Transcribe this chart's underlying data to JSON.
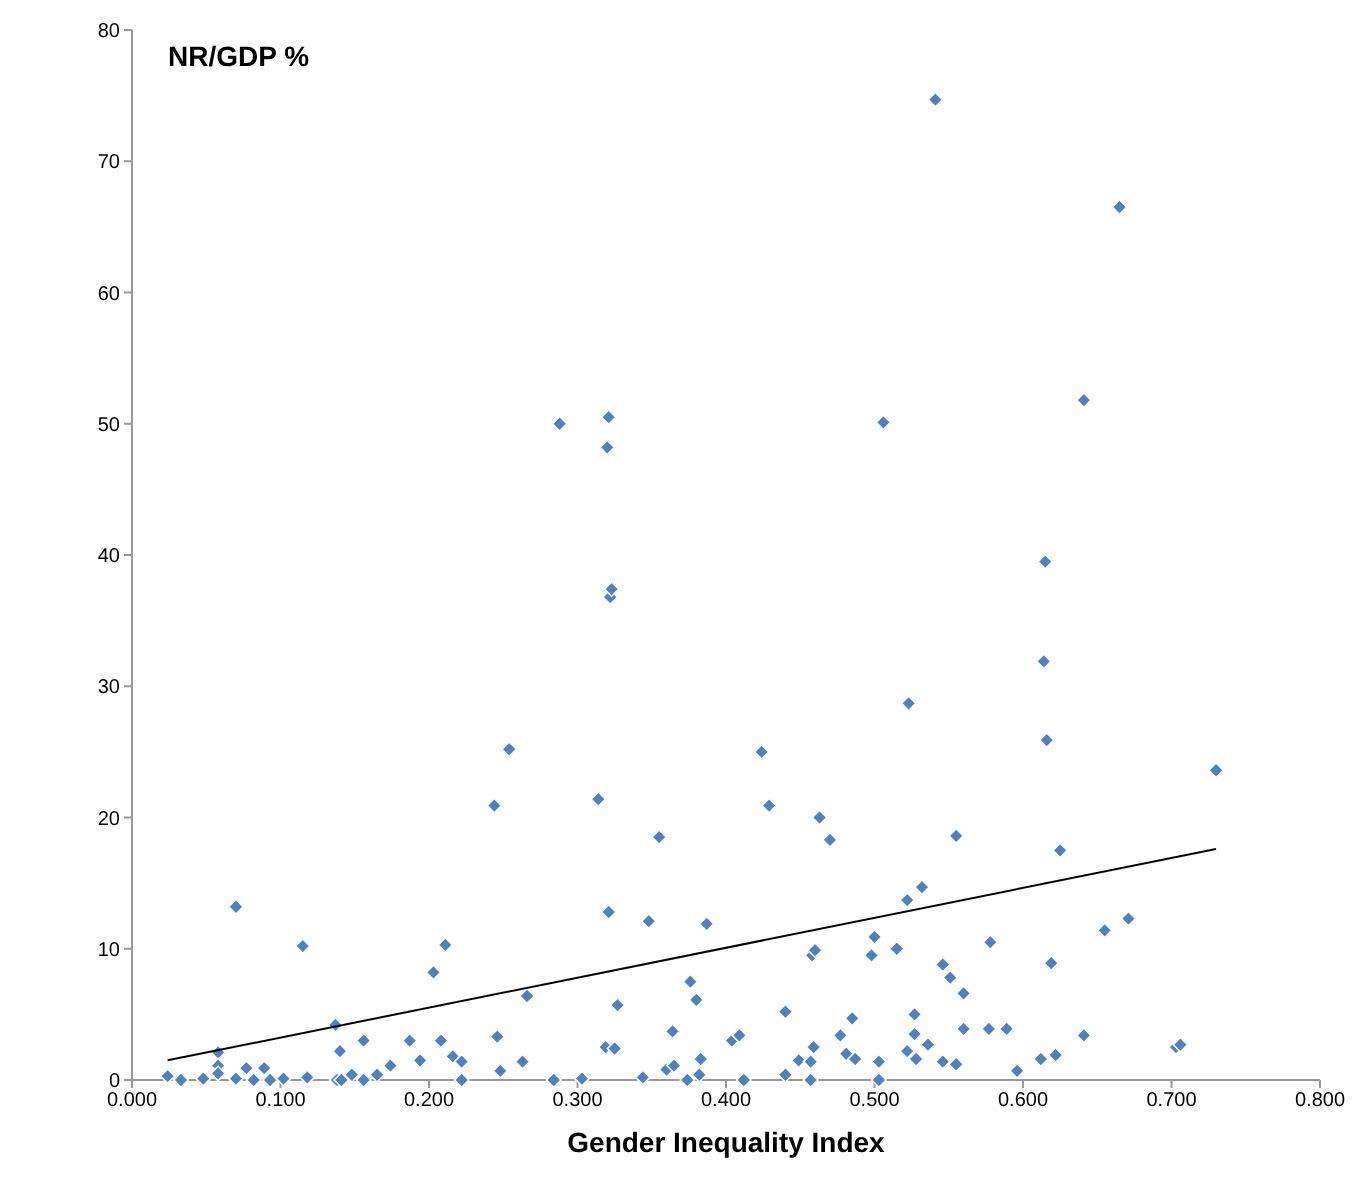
{
  "chart_data": {
    "type": "scatter",
    "ylabel": "NR/GDP %",
    "xlabel": "Gender Inequality Index",
    "xlim": [
      0,
      0.8
    ],
    "xticks": [
      {
        "value": 0,
        "label": "0.000"
      },
      {
        "value": 0.1,
        "label": "0.100"
      },
      {
        "value": 0.2,
        "label": "0.200"
      },
      {
        "value": 0.3,
        "label": "0.300"
      },
      {
        "value": 0.4,
        "label": "0.400"
      },
      {
        "value": 0.5,
        "label": "0.500"
      },
      {
        "value": 0.6,
        "label": "0.600"
      },
      {
        "value": 0.7,
        "label": "0.700"
      },
      {
        "value": 0.8,
        "label": "0.800"
      }
    ],
    "ylim": [
      0,
      80
    ],
    "yticks": [
      0,
      10,
      20,
      30,
      40,
      50,
      60,
      70,
      80
    ],
    "grid": false,
    "legend": false,
    "marker": "diamond",
    "series": [
      {
        "type": "scatter",
        "color": "#4f81bd",
        "x": [
          0.024,
          0.033,
          0.048,
          0.058,
          0.058,
          0.058,
          0.07,
          0.07,
          0.077,
          0.082,
          0.089,
          0.093,
          0.102,
          0.115,
          0.118,
          0.137,
          0.138,
          0.14,
          0.141,
          0.148,
          0.156,
          0.156,
          0.165,
          0.174,
          0.187,
          0.194,
          0.203,
          0.208,
          0.211,
          0.216,
          0.222,
          0.222,
          0.244,
          0.246,
          0.248,
          0.254,
          0.263,
          0.266,
          0.284,
          0.288,
          0.303,
          0.314,
          0.319,
          0.32,
          0.321,
          0.321,
          0.322,
          0.323,
          0.325,
          0.327,
          0.344,
          0.348,
          0.355,
          0.36,
          0.364,
          0.365,
          0.374,
          0.376,
          0.38,
          0.382,
          0.383,
          0.387,
          0.404,
          0.409,
          0.412,
          0.424,
          0.429,
          0.44,
          0.44,
          0.449,
          0.457,
          0.457,
          0.458,
          0.459,
          0.46,
          0.463,
          0.47,
          0.477,
          0.481,
          0.485,
          0.487,
          0.498,
          0.5,
          0.503,
          0.503,
          0.506,
          0.515,
          0.522,
          0.522,
          0.523,
          0.527,
          0.527,
          0.528,
          0.532,
          0.536,
          0.541,
          0.546,
          0.546,
          0.551,
          0.555,
          0.555,
          0.56,
          0.56,
          0.577,
          0.578,
          0.589,
          0.596,
          0.612,
          0.614,
          0.615,
          0.616,
          0.619,
          0.622,
          0.625,
          0.641,
          0.641,
          0.655,
          0.665,
          0.671,
          0.703,
          0.706,
          0.73
        ],
        "values": [
          0.3,
          0,
          0.1,
          2.1,
          1.1,
          0.5,
          0.1,
          13.2,
          0.9,
          0,
          0.9,
          0,
          0.1,
          10.2,
          0.2,
          4.2,
          0,
          2.2,
          0,
          0.4,
          0,
          3.0,
          0.4,
          1.1,
          3.0,
          1.5,
          8.2,
          3.0,
          10.3,
          1.8,
          1.4,
          0,
          20.9,
          3.3,
          0.7,
          25.2,
          1.4,
          6.4,
          0,
          50.0,
          0.1,
          21.4,
          2.5,
          48.2,
          12.8,
          50.5,
          36.8,
          37.4,
          2.4,
          5.7,
          0.2,
          12.1,
          18.5,
          0.8,
          3.7,
          1.1,
          0,
          7.5,
          6.1,
          0.4,
          1.6,
          11.9,
          3.0,
          3.4,
          0,
          25.0,
          20.9,
          5.2,
          0.4,
          1.5,
          1.4,
          0,
          9.5,
          2.5,
          9.9,
          20.0,
          18.3,
          3.4,
          2.0,
          4.7,
          1.6,
          9.5,
          10.9,
          1.4,
          0,
          50.1,
          10.0,
          13.7,
          2.2,
          28.7,
          5.0,
          3.5,
          1.6,
          14.7,
          2.7,
          74.7,
          1.4,
          8.8,
          7.8,
          18.6,
          1.2,
          6.6,
          3.9,
          3.9,
          10.5,
          3.9,
          0.7,
          1.6,
          31.9,
          39.5,
          25.9,
          8.9,
          1.9,
          17.5,
          3.4,
          51.8,
          11.4,
          66.5,
          12.3,
          2.5,
          2.7,
          23.6
        ]
      },
      {
        "type": "line",
        "color": "#000000",
        "marker": "none",
        "x": [
          0.024,
          0.73
        ],
        "values": [
          1.5,
          17.6
        ]
      }
    ]
  }
}
